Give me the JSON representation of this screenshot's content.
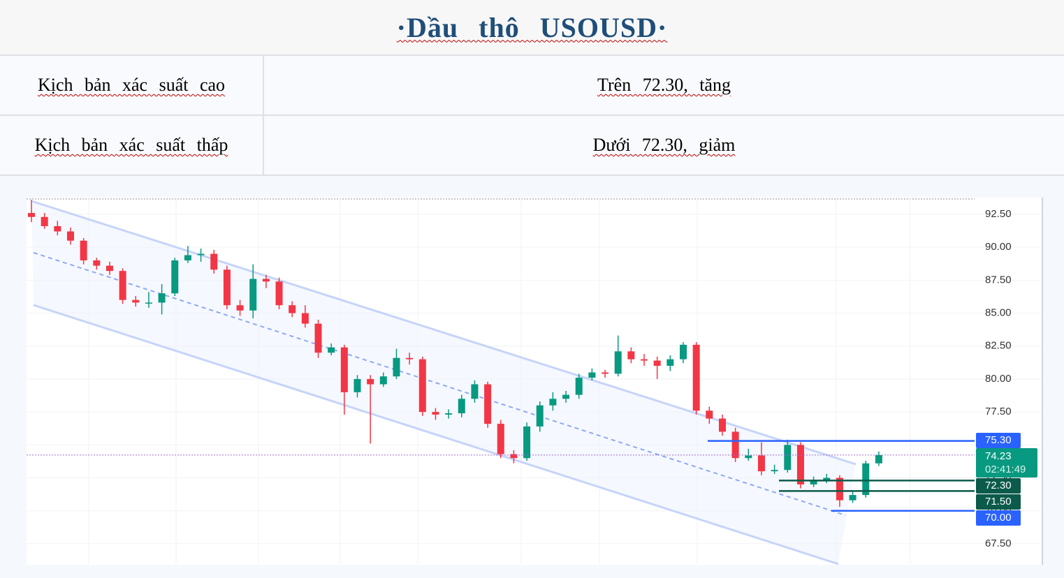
{
  "header": {
    "title": "·Dầu thô USOUSD·"
  },
  "table": {
    "rows": [
      [
        "Kịch bản xác suất cao",
        "Trên 72.30, tăng"
      ],
      [
        "Kịch bản xác suất thấp",
        "Dưới 72.30, giảm"
      ]
    ]
  },
  "chart_data": {
    "type": "candlestick",
    "up_color": "#089981",
    "down_color": "#f23645",
    "grid": true,
    "ylim": [
      65.96,
      93.77
    ],
    "yticks": [
      {
        "value": 92.5,
        "label": "92.50"
      },
      {
        "value": 90,
        "label": "90.00"
      },
      {
        "value": 87.5,
        "label": "87.50"
      },
      {
        "value": 85,
        "label": "85.00"
      },
      {
        "value": 82.5,
        "label": "82.50"
      },
      {
        "value": 80,
        "label": "80.00"
      },
      {
        "value": 77.5,
        "label": "77.50"
      },
      {
        "value": 75,
        "label": "75.00"
      },
      {
        "value": 72.5,
        "label": "72.50"
      },
      {
        "value": 70,
        "label": "70.00"
      },
      {
        "value": 67.5,
        "label": "67.50"
      }
    ],
    "candles": [
      [
        92.6,
        93.6,
        91.9,
        92.3
      ],
      [
        92.3,
        92.6,
        91.4,
        91.6
      ],
      [
        91.6,
        92.0,
        90.9,
        91.2
      ],
      [
        91.2,
        91.5,
        90.2,
        90.5
      ],
      [
        90.5,
        90.7,
        88.7,
        89.0
      ],
      [
        89.0,
        89.2,
        88.3,
        88.6
      ],
      [
        88.6,
        88.9,
        87.9,
        88.2
      ],
      [
        88.2,
        88.4,
        85.7,
        86.0
      ],
      [
        86.0,
        86.3,
        85.5,
        85.8
      ],
      [
        85.8,
        86.6,
        85.4,
        85.8
      ],
      [
        85.8,
        87.2,
        84.9,
        86.5
      ],
      [
        86.5,
        89.2,
        86.3,
        89.0
      ],
      [
        89.0,
        90.1,
        88.8,
        89.4
      ],
      [
        89.4,
        89.9,
        88.9,
        89.5
      ],
      [
        89.5,
        89.8,
        88.0,
        88.3
      ],
      [
        88.3,
        88.6,
        85.3,
        85.6
      ],
      [
        85.6,
        86.0,
        84.8,
        85.2
      ],
      [
        85.2,
        88.7,
        84.6,
        87.6
      ],
      [
        87.6,
        87.9,
        86.9,
        87.4
      ],
      [
        87.4,
        87.7,
        85.3,
        85.6
      ],
      [
        85.6,
        85.9,
        84.7,
        85.0
      ],
      [
        85.0,
        85.6,
        83.9,
        84.2
      ],
      [
        84.2,
        84.5,
        81.6,
        82.0
      ],
      [
        82.0,
        82.7,
        81.8,
        82.4
      ],
      [
        82.4,
        82.6,
        77.3,
        79.0
      ],
      [
        79.0,
        80.3,
        78.6,
        80.0
      ],
      [
        80.0,
        80.3,
        75.1,
        79.6
      ],
      [
        79.6,
        80.5,
        79.4,
        80.2
      ],
      [
        80.2,
        82.3,
        80.0,
        81.6
      ],
      [
        81.6,
        82.0,
        81.1,
        81.5
      ],
      [
        81.5,
        81.7,
        77.2,
        77.5
      ],
      [
        77.5,
        77.8,
        76.9,
        77.3
      ],
      [
        77.3,
        77.7,
        77.0,
        77.4
      ],
      [
        77.4,
        78.8,
        77.1,
        78.5
      ],
      [
        78.5,
        79.9,
        78.2,
        79.6
      ],
      [
        79.6,
        79.8,
        76.3,
        76.6
      ],
      [
        76.6,
        76.9,
        74.0,
        74.3
      ],
      [
        74.3,
        74.6,
        73.6,
        74.0
      ],
      [
        74.0,
        76.7,
        73.8,
        76.4
      ],
      [
        76.4,
        78.3,
        76.0,
        78.0
      ],
      [
        78.0,
        79.0,
        77.6,
        78.5
      ],
      [
        78.5,
        79.1,
        78.2,
        78.8
      ],
      [
        78.8,
        80.4,
        78.5,
        80.1
      ],
      [
        80.1,
        80.8,
        79.9,
        80.5
      ],
      [
        80.5,
        80.7,
        80.1,
        80.4
      ],
      [
        80.4,
        83.3,
        80.2,
        82.1
      ],
      [
        82.1,
        82.4,
        81.2,
        81.5
      ],
      [
        81.5,
        81.9,
        81.0,
        81.4
      ],
      [
        81.4,
        81.7,
        80.0,
        81.0
      ],
      [
        81.0,
        81.8,
        80.6,
        81.5
      ],
      [
        81.5,
        82.8,
        81.2,
        82.6
      ],
      [
        82.6,
        82.8,
        77.3,
        77.6
      ],
      [
        77.6,
        77.9,
        76.6,
        77.0
      ],
      [
        77.0,
        77.3,
        75.7,
        76.0
      ],
      [
        76.0,
        76.3,
        73.7,
        74.0
      ],
      [
        74.0,
        74.7,
        73.8,
        74.2
      ],
      [
        74.2,
        75.2,
        72.7,
        73.0
      ],
      [
        73.0,
        73.5,
        72.8,
        73.1
      ],
      [
        73.1,
        75.4,
        72.9,
        75.0
      ],
      [
        75.0,
        75.2,
        71.7,
        72.0
      ],
      [
        72.0,
        72.6,
        71.8,
        72.3
      ],
      [
        72.3,
        72.8,
        72.1,
        72.5
      ],
      [
        72.5,
        72.7,
        70.3,
        70.8
      ],
      [
        70.8,
        71.5,
        70.6,
        71.2
      ],
      [
        71.2,
        73.8,
        71.0,
        73.6
      ],
      [
        73.6,
        74.5,
        73.4,
        74.23
      ]
    ],
    "levels": [
      {
        "value": 75.3,
        "label": "75.30",
        "color": "#2962ff"
      },
      {
        "value": 72.3,
        "label": "72.30",
        "color": "#0b5a4a"
      },
      {
        "value": 71.5,
        "label": "71.50",
        "color": "#0b5a4a"
      },
      {
        "value": 70,
        "label": "70.00",
        "color": "#2962ff"
      }
    ],
    "current": {
      "value": 74.23,
      "countdown": "02:41:49",
      "color": "#089981"
    }
  }
}
